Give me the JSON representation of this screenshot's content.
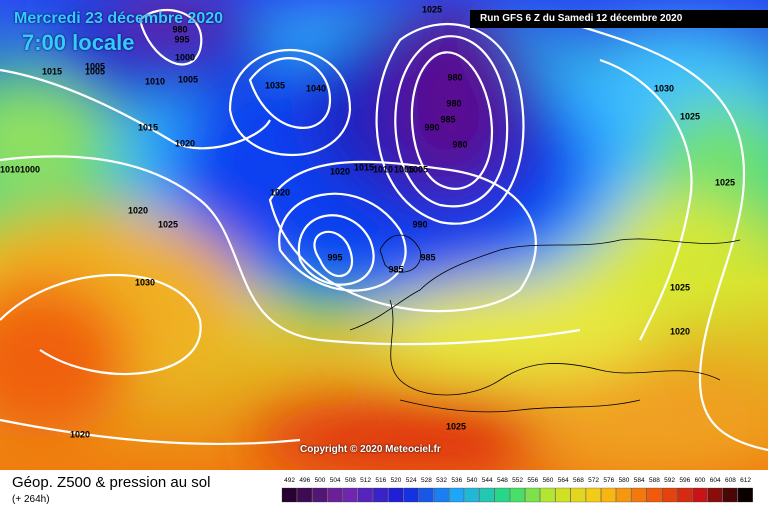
{
  "header": {
    "valid_date": "Mercredi 23 décembre 2020",
    "valid_time": "7:00 locale",
    "run": "Run GFS 6 Z du Samedi 12 décembre 2020",
    "copyright": "Copyright © 2020 Meteociel.fr"
  },
  "footer": {
    "title": "Géop. Z500 & pression au sol",
    "lead": "(+ 264h)"
  },
  "legend": {
    "labels": [
      492,
      496,
      500,
      504,
      508,
      512,
      516,
      520,
      524,
      528,
      532,
      536,
      540,
      544,
      548,
      552,
      556,
      560,
      564,
      568,
      572,
      576,
      580,
      584,
      588,
      592,
      596,
      600,
      604,
      608,
      612
    ]
  },
  "isobar_labels": [
    "980",
    "995",
    "1000",
    "1005",
    "1005",
    "1010",
    "1005",
    "1015",
    "1020",
    "1020",
    "1025",
    "1030",
    "1035",
    "1040",
    "980",
    "980",
    "990",
    "985",
    "980",
    "1025",
    "1030",
    "1025",
    "1025",
    "1020",
    "1015",
    "1010",
    "1005",
    "1005",
    "1020",
    "995",
    "990",
    "985",
    "985",
    "1025",
    "1025",
    "1020",
    "1015",
    "1020",
    "1010",
    "1000"
  ]
}
